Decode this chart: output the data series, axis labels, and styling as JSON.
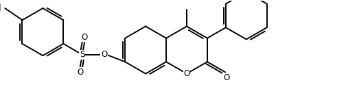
{
  "bg_color": "#ffffff",
  "lw": 1.4,
  "fs": 8.5,
  "fig_width": 5.04,
  "fig_height": 1.46,
  "dpi": 100,
  "xlim": [
    0,
    10.5
  ],
  "ylim": [
    0,
    3.0
  ]
}
